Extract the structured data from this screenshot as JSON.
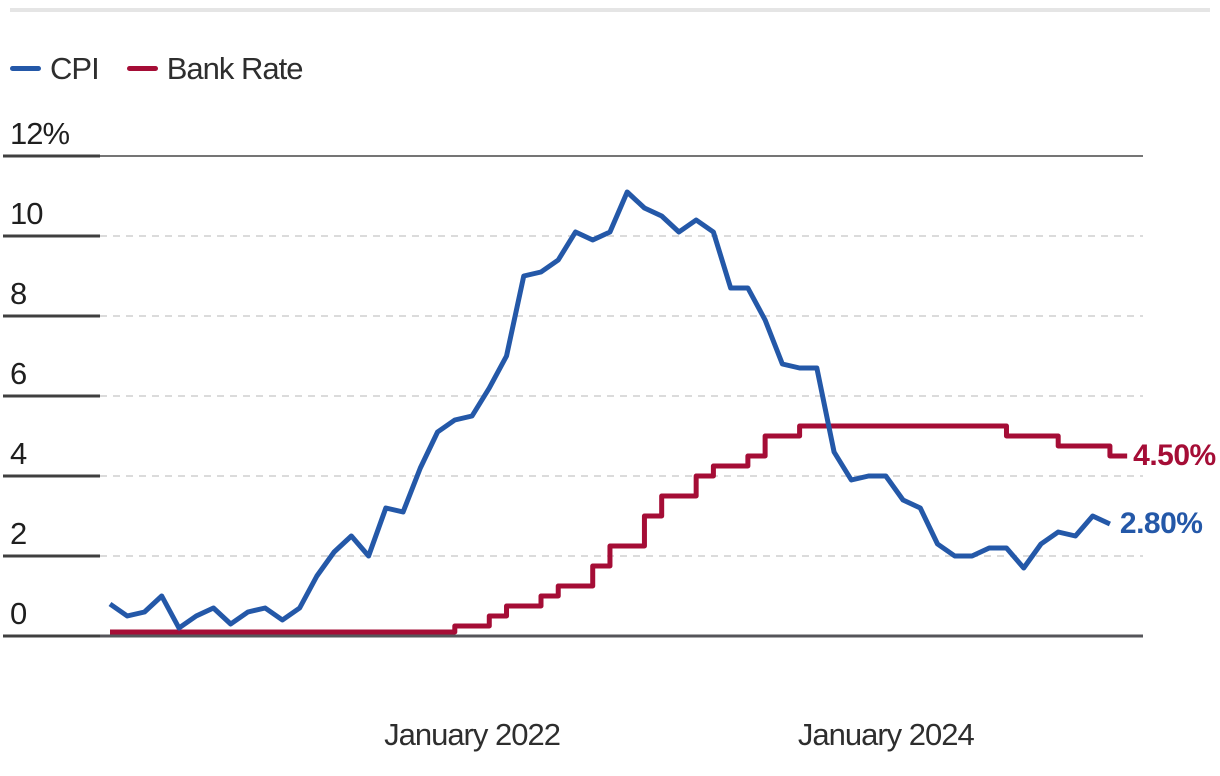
{
  "legend": {
    "items": [
      {
        "label": "CPI"
      },
      {
        "label": "Bank Rate"
      }
    ]
  },
  "chart_data": {
    "type": "line",
    "title": "",
    "x_frequency": "monthly",
    "x_range": {
      "start": "2020-04",
      "end": "2025-02"
    },
    "series": [
      {
        "name": "CPI",
        "color": "#2458A8",
        "style": "line",
        "end_label": "2.80%",
        "values": [
          0.8,
          0.5,
          0.6,
          1.0,
          0.2,
          0.5,
          0.7,
          0.3,
          0.6,
          0.7,
          0.4,
          0.7,
          1.5,
          2.1,
          2.5,
          2.0,
          3.2,
          3.1,
          4.2,
          5.1,
          5.4,
          5.5,
          6.2,
          7.0,
          9.0,
          9.1,
          9.4,
          10.1,
          9.9,
          10.1,
          11.1,
          10.7,
          10.5,
          10.1,
          10.4,
          10.1,
          8.7,
          8.7,
          7.9,
          6.8,
          6.7,
          6.7,
          4.6,
          3.9,
          4.0,
          4.0,
          3.4,
          3.2,
          2.3,
          2.0,
          2.0,
          2.2,
          2.2,
          1.7,
          2.3,
          2.6,
          2.5,
          3.0,
          2.8
        ]
      },
      {
        "name": "Bank Rate",
        "color": "#A50D36",
        "style": "step-after",
        "end_label": "4.50%",
        "values": [
          0.1,
          0.1,
          0.1,
          0.1,
          0.1,
          0.1,
          0.1,
          0.1,
          0.1,
          0.1,
          0.1,
          0.1,
          0.1,
          0.1,
          0.1,
          0.1,
          0.1,
          0.1,
          0.1,
          0.1,
          0.25,
          0.25,
          0.5,
          0.75,
          0.75,
          1.0,
          1.25,
          1.25,
          1.75,
          2.25,
          2.25,
          3.0,
          3.5,
          3.5,
          4.0,
          4.25,
          4.25,
          4.5,
          5.0,
          5.0,
          5.25,
          5.25,
          5.25,
          5.25,
          5.25,
          5.25,
          5.25,
          5.25,
          5.25,
          5.25,
          5.25,
          5.25,
          5.0,
          5.0,
          5.0,
          4.75,
          4.75,
          4.75,
          4.5
        ]
      }
    ],
    "x_axis": {
      "ticks": [
        {
          "label": "January 2022",
          "month_index": 21
        },
        {
          "label": "January 2024",
          "month_index": 45
        }
      ]
    },
    "y_axis": {
      "min": 0,
      "max": 12,
      "ticks": [
        {
          "label": "0",
          "value": 0
        },
        {
          "label": "2",
          "value": 2
        },
        {
          "label": "4",
          "value": 4
        },
        {
          "label": "6",
          "value": 6
        },
        {
          "label": "8",
          "value": 8
        },
        {
          "label": "10",
          "value": 10
        },
        {
          "label": "12%",
          "value": 12
        }
      ],
      "grid": "dashed light-gray between, solid at top (12%) and baseline (0)"
    },
    "legend_position": "top-left"
  },
  "colors": {
    "cpi_blue": "#2458A8",
    "bank_rate_crimson": "#A50D36",
    "grid_dashed": "#DBDBDB",
    "grid_solid_top": "#757575",
    "axis_baseline": "#55555A",
    "tick_underline": "#3F3F3F",
    "text": "#2e2e2e",
    "top_border": "#E5E5E5"
  }
}
